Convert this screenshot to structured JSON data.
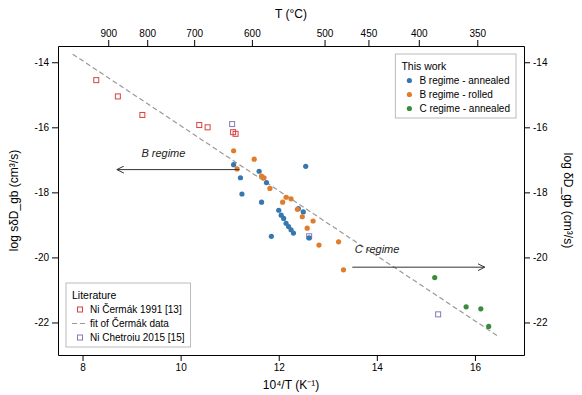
{
  "chart_data": {
    "type": "scatter",
    "xlabel": "10⁴/T (K⁻¹)",
    "ylabel": "log sδD_gb (cm³/s)",
    "x2label": "T (°C)",
    "y2label": "log δD_gb (cm³/s)",
    "xlim": [
      7.5,
      17.0
    ],
    "ylim": [
      -23.0,
      -13.5
    ],
    "xticks": [
      8,
      10,
      12,
      14,
      16
    ],
    "yticks": [
      -14,
      -16,
      -18,
      -20,
      -22
    ],
    "x2lim": [
      7.5,
      17.0
    ],
    "x2ticks": [
      {
        "value": 8.52406,
        "label": "900"
      },
      {
        "value": 9.31836,
        "label": "800"
      },
      {
        "value": 10.27591,
        "label": "700"
      },
      {
        "value": 11.45279,
        "label": "600"
      },
      {
        "value": 12.9341,
        "label": "500"
      },
      {
        "value": 13.82839,
        "label": "450"
      },
      {
        "value": 14.85553,
        "label": "400"
      },
      {
        "value": 16.0475,
        "label": "350"
      }
    ],
    "y2lim": [
      -23.0,
      -13.5
    ],
    "y2ticks": [
      -14,
      -16,
      -18,
      -20,
      -22
    ],
    "grid": false,
    "series": [
      {
        "name": "fit of Čermák data",
        "type": "line",
        "line_style": "dashed",
        "color": "#999999",
        "x": [
          7.8,
          16.5
        ],
        "values": [
          -13.75,
          -22.45
        ]
      },
      {
        "name": "Ni Čermák 1991 [13]",
        "type": "scatter",
        "marker": "square",
        "color": "#d94040",
        "x": [
          8.28,
          8.72,
          9.22,
          10.38,
          10.55,
          11.07,
          11.12
        ],
        "values": [
          -14.55,
          -15.05,
          -15.62,
          -15.93,
          -16.0,
          -16.15,
          -16.2
        ]
      },
      {
        "name": "Ni Chetroiu 2015 [15]",
        "type": "scatter",
        "marker": "square",
        "color": "#8878b8",
        "x": [
          11.05,
          12.62,
          15.25
        ],
        "values": [
          -15.9,
          -19.35,
          -21.75
        ]
      },
      {
        "name": "B regime - annealed",
        "type": "scatter",
        "marker": "circle",
        "color": "#3777b0",
        "x": [
          11.08,
          11.22,
          11.25,
          11.6,
          11.65,
          11.75,
          11.85,
          12.0,
          12.05,
          12.1,
          12.15,
          12.2,
          12.25,
          12.3,
          12.4,
          12.5,
          12.55,
          12.62
        ],
        "values": [
          -17.15,
          -17.55,
          -18.05,
          -17.35,
          -18.3,
          -17.7,
          -19.35,
          -18.55,
          -18.7,
          -18.8,
          -18.95,
          -19.05,
          -19.15,
          -19.25,
          -18.5,
          -18.6,
          -17.2,
          -19.4
        ]
      },
      {
        "name": "B regime - rolled",
        "type": "scatter",
        "marker": "circle",
        "color": "#e07c2c",
        "x": [
          11.08,
          11.15,
          11.5,
          11.65,
          11.7,
          11.82,
          12.08,
          12.15,
          12.25,
          12.38,
          12.48,
          12.58,
          12.7,
          12.82,
          13.22,
          13.32
        ],
        "values": [
          -16.72,
          -17.28,
          -16.98,
          -17.5,
          -17.55,
          -17.88,
          -18.3,
          -18.15,
          -18.2,
          -18.52,
          -18.75,
          -19.1,
          -18.88,
          -19.62,
          -19.52,
          -20.38
        ]
      },
      {
        "name": "C regime - annealed",
        "type": "scatter",
        "marker": "circle",
        "color": "#3a8c3a",
        "x": [
          15.18,
          15.82,
          16.12,
          16.28
        ],
        "values": [
          -20.62,
          -21.52,
          -21.58,
          -22.12
        ]
      }
    ],
    "legends": [
      {
        "title": "This work",
        "legend": "upper right",
        "series": [
          3,
          4,
          5
        ]
      },
      {
        "title": "Literature",
        "legend": "lower left",
        "series": [
          1,
          0,
          2
        ]
      }
    ],
    "annotations": [
      {
        "text": "B regime",
        "x": 9.2,
        "y": -16.9,
        "arrow_x": [
          11.2,
          8.7
        ],
        "arrow_y": -17.3
      },
      {
        "text": "C regime",
        "x": 13.55,
        "y": -19.85,
        "arrow_x": [
          13.5,
          16.2
        ],
        "arrow_y": -20.3
      }
    ]
  }
}
